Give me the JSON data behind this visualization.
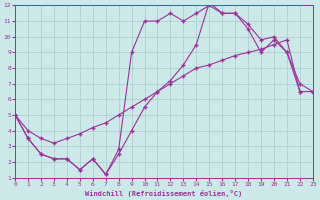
{
  "xlabel": "Windchill (Refroidissement éolien,°C)",
  "bg_color": "#cce8e8",
  "line_color": "#993399",
  "grid_color": "#aacccc",
  "curve1_x": [
    0,
    1,
    2,
    3,
    4,
    5,
    6,
    7,
    8,
    9,
    10,
    11,
    12,
    13,
    14,
    15,
    16,
    17,
    18,
    19,
    20,
    21,
    22,
    23
  ],
  "curve1_y": [
    5.0,
    3.5,
    2.5,
    2.2,
    2.2,
    1.5,
    2.2,
    1.2,
    2.8,
    9.0,
    11.0,
    11.0,
    11.5,
    11.0,
    11.5,
    12.0,
    11.5,
    11.5,
    10.8,
    9.8,
    10.0,
    9.0,
    7.0,
    6.5
  ],
  "curve2_x": [
    0,
    1,
    2,
    3,
    4,
    5,
    6,
    7,
    8,
    9,
    10,
    11,
    12,
    13,
    14,
    15,
    16,
    17,
    18,
    19,
    20,
    21,
    22,
    23
  ],
  "curve2_y": [
    5.0,
    3.5,
    2.5,
    2.2,
    2.2,
    1.5,
    2.2,
    1.2,
    2.5,
    4.0,
    5.5,
    6.5,
    7.2,
    8.2,
    9.5,
    12.2,
    11.5,
    11.5,
    10.5,
    9.0,
    9.8,
    9.0,
    6.5,
    6.5
  ],
  "curve3_x": [
    0,
    1,
    2,
    3,
    4,
    5,
    6,
    7,
    8,
    9,
    10,
    11,
    12,
    13,
    14,
    15,
    16,
    17,
    18,
    19,
    20,
    21,
    22,
    23
  ],
  "curve3_y": [
    5.0,
    4.0,
    3.5,
    3.2,
    3.5,
    3.8,
    4.2,
    4.5,
    5.0,
    5.5,
    6.0,
    6.5,
    7.0,
    7.5,
    8.0,
    8.2,
    8.5,
    8.8,
    9.0,
    9.2,
    9.5,
    9.8,
    6.5,
    6.5
  ],
  "xlim": [
    0,
    23
  ],
  "ylim": [
    1,
    12
  ],
  "xticks": [
    0,
    1,
    2,
    3,
    4,
    5,
    6,
    7,
    8,
    9,
    10,
    11,
    12,
    13,
    14,
    15,
    16,
    17,
    18,
    19,
    20,
    21,
    22,
    23
  ],
  "yticks": [
    1,
    2,
    3,
    4,
    5,
    6,
    7,
    8,
    9,
    10,
    11,
    12
  ]
}
